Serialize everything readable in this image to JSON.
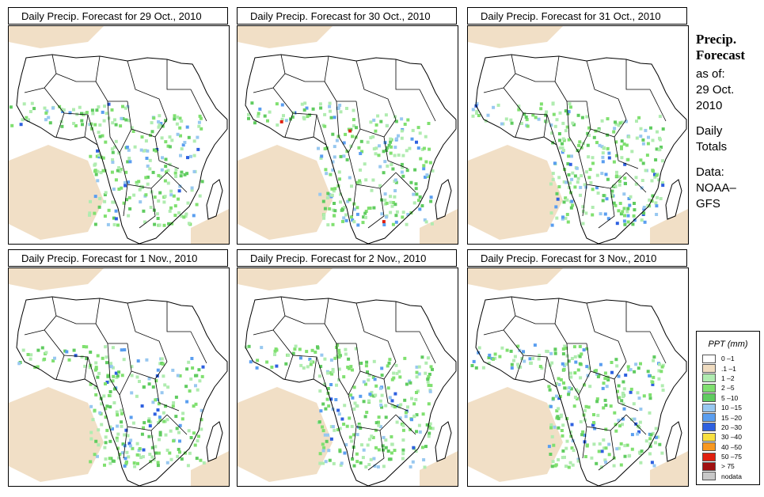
{
  "panels": [
    {
      "title": "Daily Precip. Forecast for  29 Oct., 2010"
    },
    {
      "title": "Daily Precip. Forecast for  30 Oct., 2010"
    },
    {
      "title": "Daily Precip. Forecast for  31 Oct., 2010"
    },
    {
      "title": "Daily Precip. Forecast for  1 Nov., 2010"
    },
    {
      "title": "Daily Precip. Forecast for  2 Nov., 2010"
    },
    {
      "title": "Daily Precip. Forecast for  3 Nov., 2010"
    }
  ],
  "sidebar": {
    "heading1": "Precip.",
    "heading2": "Forecast",
    "asof_label": "as of:",
    "asof_date1": "29 Oct.",
    "asof_date2": "2010",
    "totals1": "Daily",
    "totals2": "Totals",
    "data1": "Data:",
    "data2": "NOAA–",
    "data3": "GFS"
  },
  "legend": {
    "title": "PPT (mm)",
    "items": [
      {
        "label": "0 –1",
        "color": "#ffffff"
      },
      {
        "label": ".1 –1",
        "color": "#f0dcc0"
      },
      {
        "label": "1 –2",
        "color": "#b0ecb0"
      },
      {
        "label": "2 –5",
        "color": "#80e070"
      },
      {
        "label": "5 –10",
        "color": "#60cc60"
      },
      {
        "label": "10 –15",
        "color": "#98c8f0"
      },
      {
        "label": "15 –20",
        "color": "#5a9ef0"
      },
      {
        "label": "20 –30",
        "color": "#2e60e0"
      },
      {
        "label": "30 –40",
        "color": "#f8e040"
      },
      {
        "label": "40 –50",
        "color": "#f89820"
      },
      {
        "label": "50 –75",
        "color": "#e02010"
      },
      {
        "label": "> 75",
        "color": "#a01010"
      },
      {
        "label": "nodata",
        "color": "#c8c8c8"
      }
    ]
  }
}
